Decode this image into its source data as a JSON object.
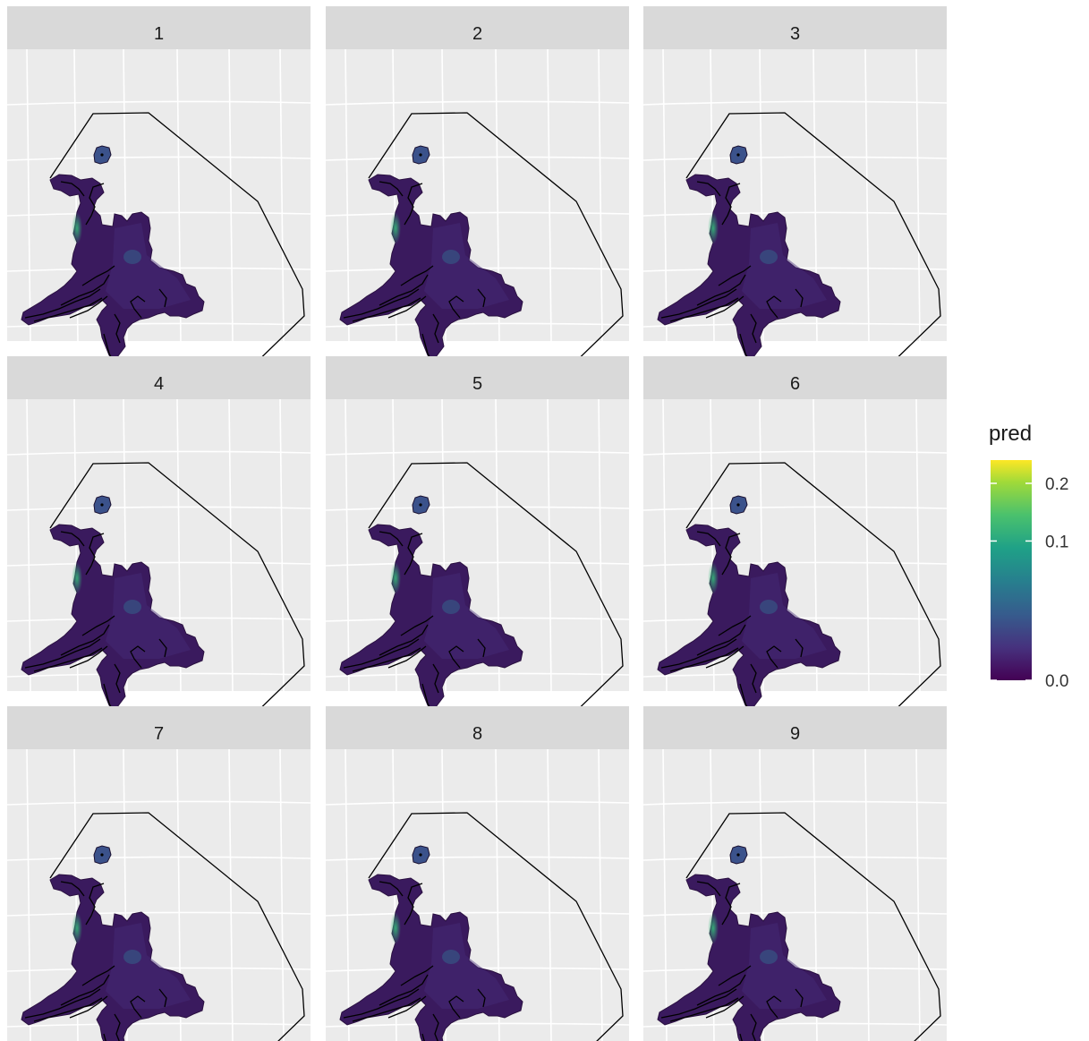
{
  "chart_data": {
    "type": "heatmap",
    "description_kind": "faceted map of predictions",
    "facets": [
      "1",
      "2",
      "3",
      "4",
      "5",
      "6",
      "7",
      "8",
      "9"
    ],
    "fill_variable": "pred",
    "legend": {
      "title": "pred",
      "ticks": [
        {
          "label": "0.2",
          "value": 0.2
        },
        {
          "label": "0.1",
          "value": 0.1
        },
        {
          "label": "0.0",
          "value": 0.0
        }
      ],
      "range": [
        0,
        0.25
      ],
      "colormap": "viridis",
      "placement": "right"
    },
    "grid": true,
    "panel_background": "#ebebeb",
    "strip_background": "#d9d9d9",
    "region_fill": "#3a1a5e",
    "outline_color": "#000000"
  }
}
